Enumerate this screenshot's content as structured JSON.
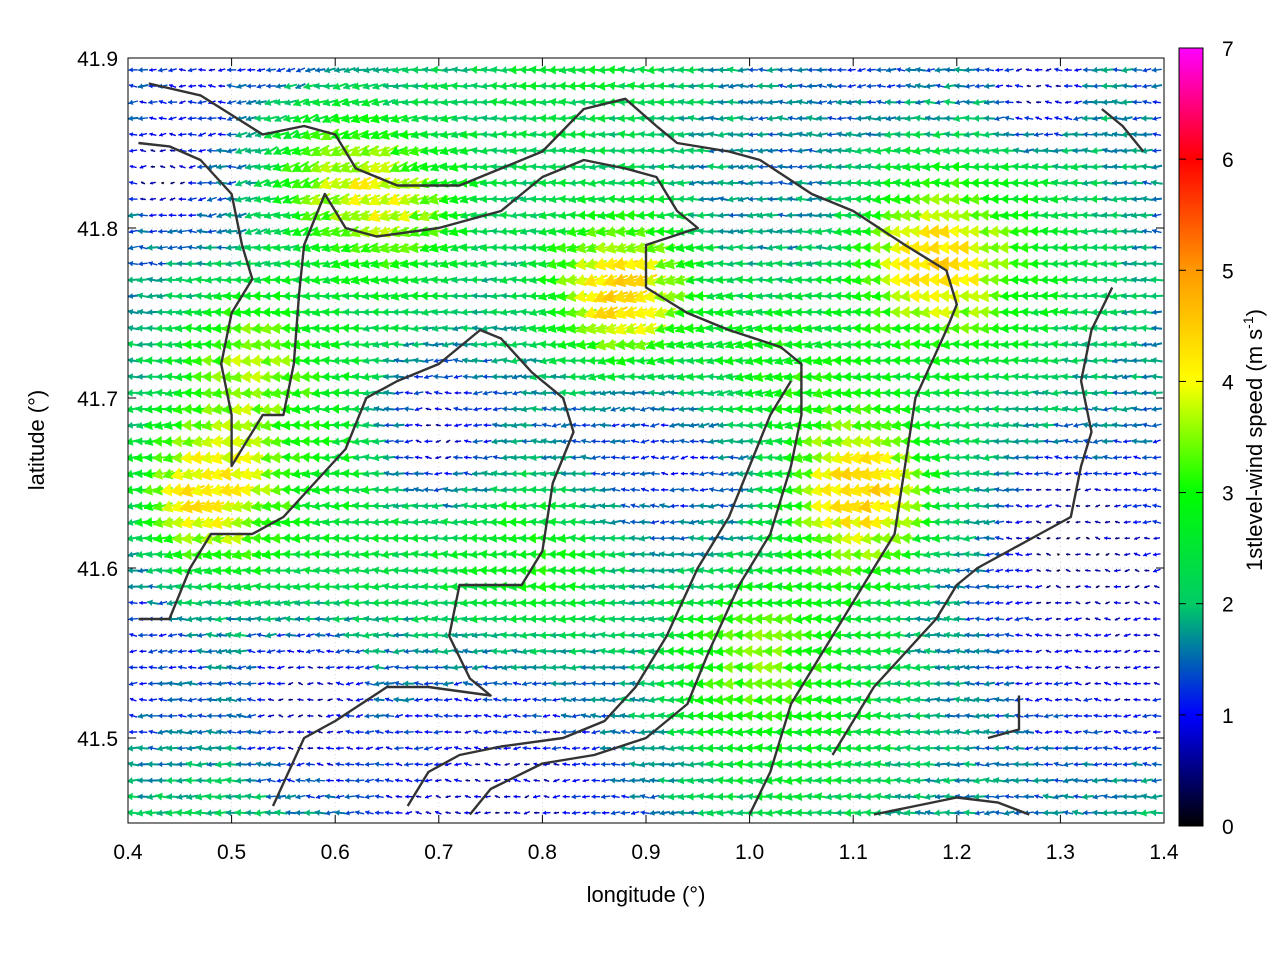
{
  "chart_data": {
    "type": "vector-field",
    "xlabel": "longitude (°)",
    "ylabel": "latitude (°)",
    "xlim": [
      0.4,
      1.4
    ],
    "ylim": [
      41.45,
      41.9
    ],
    "xticks": [
      "0.4",
      "0.5",
      "0.6",
      "0.7",
      "0.8",
      "0.9",
      "1.0",
      "1.1",
      "1.2",
      "1.3",
      "1.4"
    ],
    "yticks": [
      "41.5",
      "41.6",
      "41.7",
      "41.8",
      "41.9"
    ],
    "grid": true,
    "colorbar": {
      "label": "1stlevel-wind speed (m s",
      "label_sup": "-1",
      "label_end": ")",
      "range": [
        0,
        7
      ],
      "ticks": [
        "0",
        "1",
        "2",
        "3",
        "4",
        "5",
        "6",
        "7"
      ],
      "colors": [
        "#000000",
        "#0000ff",
        "#00cc66",
        "#00ff00",
        "#ffff00",
        "#ff9900",
        "#ff0000",
        "#ff00ff"
      ]
    },
    "wind_field": {
      "grid_step_deg": [
        0.0095,
        0.0095
      ],
      "predominant_direction": "from east (arrows point west)",
      "hotspots": [
        {
          "lon": 0.88,
          "lat": 41.76,
          "speed": 4.6,
          "dir_deg": 200
        },
        {
          "lon": 1.11,
          "lat": 41.645,
          "speed": 4.0,
          "dir_deg": 190
        },
        {
          "lon": 0.47,
          "lat": 41.64,
          "speed": 3.8,
          "dir_deg": 195
        },
        {
          "lon": 0.58,
          "lat": 41.84,
          "speed": 3.3,
          "dir_deg": 205
        },
        {
          "lon": 0.66,
          "lat": 41.81,
          "speed": 3.1,
          "dir_deg": 200
        },
        {
          "lon": 1.18,
          "lat": 41.78,
          "speed": 3.2,
          "dir_deg": 185
        },
        {
          "lon": 0.52,
          "lat": 41.73,
          "speed": 3.0,
          "dir_deg": 185
        },
        {
          "lon": 1.02,
          "lat": 41.72,
          "speed": 3.0,
          "dir_deg": 190
        },
        {
          "lon": 0.8,
          "lat": 41.6,
          "speed": 2.4,
          "dir_deg": 180
        },
        {
          "lon": 1.0,
          "lat": 41.55,
          "speed": 2.3,
          "dir_deg": 180
        }
      ],
      "calm_zones": [
        {
          "lon": 0.7,
          "lat": 41.68,
          "radius": 0.09
        },
        {
          "lon": 0.57,
          "lat": 41.52,
          "radius": 0.08
        },
        {
          "lon": 1.3,
          "lat": 41.62,
          "radius": 0.07
        },
        {
          "lon": 0.43,
          "lat": 41.83,
          "radius": 0.04
        },
        {
          "lon": 1.28,
          "lat": 41.88,
          "radius": 0.06
        }
      ]
    },
    "contours": [
      [
        [
          0.42,
          41.885
        ],
        [
          0.47,
          41.878
        ],
        [
          0.53,
          41.855
        ],
        [
          0.57,
          41.86
        ],
        [
          0.6,
          41.855
        ],
        [
          0.62,
          41.835
        ],
        [
          0.66,
          41.825
        ],
        [
          0.72,
          41.825
        ],
        [
          0.76,
          41.835
        ],
        [
          0.8,
          41.845
        ],
        [
          0.84,
          41.87
        ],
        [
          0.88,
          41.876
        ],
        [
          0.91,
          41.86
        ],
        [
          0.93,
          41.85
        ],
        [
          0.98,
          41.845
        ],
        [
          1.01,
          41.84
        ],
        [
          1.06,
          41.82
        ],
        [
          1.1,
          41.81
        ],
        [
          1.15,
          41.79
        ],
        [
          1.19,
          41.775
        ],
        [
          1.2,
          41.755
        ],
        [
          1.19,
          41.74
        ],
        [
          1.16,
          41.7
        ],
        [
          1.15,
          41.66
        ],
        [
          1.14,
          41.62
        ],
        [
          1.12,
          41.6
        ],
        [
          1.08,
          41.56
        ],
        [
          1.04,
          41.52
        ],
        [
          1.02,
          41.48
        ],
        [
          1.0,
          41.455
        ]
      ],
      [
        [
          0.41,
          41.85
        ],
        [
          0.44,
          41.848
        ],
        [
          0.47,
          41.84
        ],
        [
          0.5,
          41.82
        ],
        [
          0.51,
          41.79
        ],
        [
          0.52,
          41.77
        ],
        [
          0.5,
          41.75
        ],
        [
          0.49,
          41.72
        ],
        [
          0.5,
          41.69
        ],
        [
          0.5,
          41.66
        ],
        [
          0.53,
          41.69
        ],
        [
          0.55,
          41.69
        ],
        [
          0.56,
          41.72
        ],
        [
          0.565,
          41.76
        ],
        [
          0.57,
          41.79
        ],
        [
          0.59,
          41.82
        ],
        [
          0.61,
          41.8
        ],
        [
          0.64,
          41.795
        ],
        [
          0.7,
          41.8
        ],
        [
          0.76,
          41.81
        ],
        [
          0.8,
          41.83
        ],
        [
          0.84,
          41.84
        ],
        [
          0.88,
          41.835
        ],
        [
          0.91,
          41.83
        ],
        [
          0.93,
          41.81
        ],
        [
          0.95,
          41.8
        ],
        [
          0.9,
          41.79
        ],
        [
          0.9,
          41.765
        ],
        [
          0.94,
          41.75
        ],
        [
          0.98,
          41.74
        ],
        [
          1.03,
          41.73
        ],
        [
          1.05,
          41.72
        ],
        [
          1.05,
          41.69
        ],
        [
          1.04,
          41.66
        ],
        [
          1.02,
          41.62
        ],
        [
          0.99,
          41.59
        ],
        [
          0.96,
          41.55
        ],
        [
          0.94,
          41.52
        ],
        [
          0.9,
          41.5
        ],
        [
          0.85,
          41.49
        ],
        [
          0.8,
          41.485
        ],
        [
          0.75,
          41.47
        ],
        [
          0.73,
          41.455
        ]
      ],
      [
        [
          0.41,
          41.57
        ],
        [
          0.44,
          41.57
        ],
        [
          0.46,
          41.6
        ],
        [
          0.48,
          41.62
        ],
        [
          0.52,
          41.62
        ],
        [
          0.55,
          41.63
        ],
        [
          0.58,
          41.65
        ],
        [
          0.61,
          41.67
        ],
        [
          0.63,
          41.7
        ],
        [
          0.66,
          41.71
        ],
        [
          0.7,
          41.72
        ],
        [
          0.74,
          41.74
        ],
        [
          0.76,
          41.735
        ],
        [
          0.79,
          41.715
        ],
        [
          0.82,
          41.7
        ],
        [
          0.83,
          41.68
        ],
        [
          0.81,
          41.65
        ],
        [
          0.8,
          41.61
        ],
        [
          0.78,
          41.59
        ],
        [
          0.74,
          41.59
        ],
        [
          0.72,
          41.59
        ],
        [
          0.71,
          41.56
        ],
        [
          0.73,
          41.535
        ],
        [
          0.75,
          41.525
        ],
        [
          0.69,
          41.53
        ],
        [
          0.65,
          41.53
        ],
        [
          0.6,
          41.51
        ],
        [
          0.57,
          41.5
        ],
        [
          0.54,
          41.46
        ]
      ],
      [
        [
          0.67,
          41.46
        ],
        [
          0.69,
          41.48
        ],
        [
          0.72,
          41.49
        ],
        [
          0.76,
          41.495
        ],
        [
          0.82,
          41.5
        ],
        [
          0.86,
          41.51
        ],
        [
          0.89,
          41.53
        ],
        [
          0.92,
          41.56
        ],
        [
          0.95,
          41.6
        ],
        [
          0.98,
          41.63
        ],
        [
          1.0,
          41.66
        ],
        [
          1.02,
          41.69
        ],
        [
          1.04,
          41.71
        ]
      ],
      [
        [
          1.12,
          41.455
        ],
        [
          1.16,
          41.46
        ],
        [
          1.2,
          41.465
        ],
        [
          1.24,
          41.462
        ],
        [
          1.27,
          41.455
        ]
      ],
      [
        [
          1.23,
          41.5
        ],
        [
          1.26,
          41.505
        ],
        [
          1.26,
          41.525
        ]
      ],
      [
        [
          1.34,
          41.87
        ],
        [
          1.36,
          41.86
        ],
        [
          1.38,
          41.845
        ]
      ],
      [
        [
          1.35,
          41.765
        ],
        [
          1.33,
          41.74
        ],
        [
          1.32,
          41.71
        ],
        [
          1.33,
          41.68
        ],
        [
          1.32,
          41.66
        ],
        [
          1.31,
          41.63
        ],
        [
          1.28,
          41.62
        ],
        [
          1.25,
          41.61
        ],
        [
          1.22,
          41.6
        ],
        [
          1.2,
          41.59
        ],
        [
          1.18,
          41.57
        ],
        [
          1.15,
          41.55
        ],
        [
          1.12,
          41.53
        ],
        [
          1.1,
          41.51
        ],
        [
          1.08,
          41.49
        ]
      ]
    ]
  }
}
